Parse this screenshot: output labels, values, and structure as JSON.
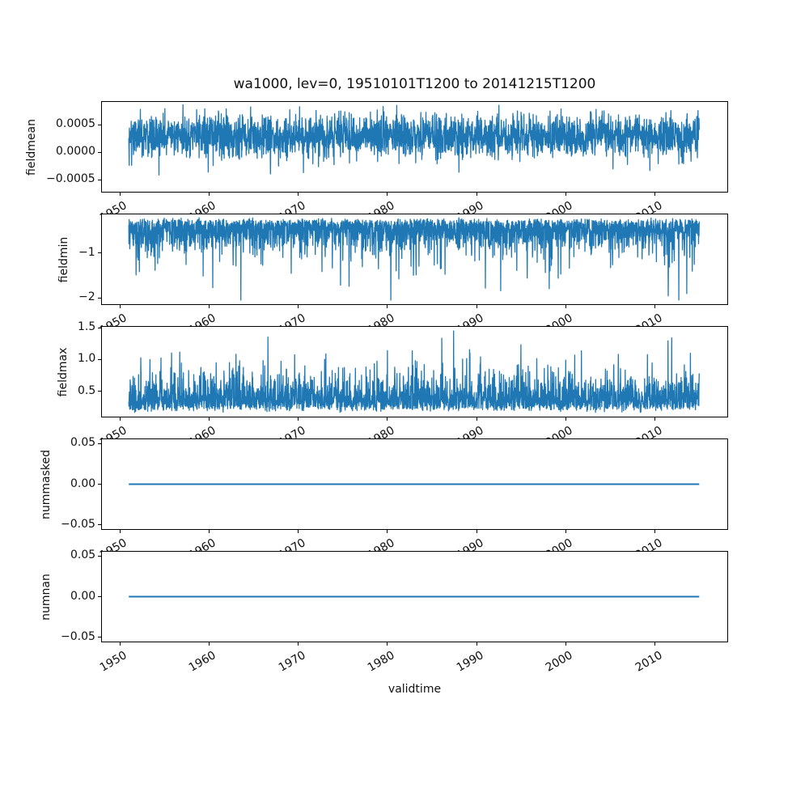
{
  "chart_data": {
    "type": "line",
    "title": "wa1000, lev=0, 19510101T1200 to 20141215T1200",
    "xlabel": "validtime",
    "line_color": "#1f77b4",
    "frame_color": "#000000",
    "background_color": "#ffffff",
    "grid": false,
    "legend": null,
    "xlim": [
      1947.9,
      2018.2
    ],
    "data_x_range": [
      1951.0,
      2014.96
    ],
    "x_tick_rotation_deg": 30,
    "x_ticks": [
      {
        "value": 1950,
        "label": "1950"
      },
      {
        "value": 1960,
        "label": "1960"
      },
      {
        "value": 1970,
        "label": "1970"
      },
      {
        "value": 1980,
        "label": "1980"
      },
      {
        "value": 1990,
        "label": "1990"
      },
      {
        "value": 2000,
        "label": "2000"
      },
      {
        "value": 2010,
        "label": "2010"
      }
    ],
    "subplots": [
      {
        "ylabel": "fieldmean",
        "ylim": [
          -0.00072,
          0.00092
        ],
        "yticks": [
          {
            "value": 0.0005,
            "label": "0.0005"
          },
          {
            "value": 0.0,
            "label": "0.0000"
          },
          {
            "value": -0.0005,
            "label": "−0.0005"
          }
        ],
        "series": {
          "kind": "noise",
          "base": 0.0003,
          "jitter": 0.00019,
          "scale": 0,
          "spike_p": 0.012,
          "spike_scale": -0.0003,
          "clip": [
            -0.00066,
            0.00087
          ],
          "n": 2800,
          "seed": 7,
          "observed_min": -0.00065,
          "observed_max": 0.00086
        }
      },
      {
        "ylabel": "fieldmin",
        "ylim": [
          -2.14,
          -0.14
        ],
        "yticks": [
          {
            "value": -1,
            "label": "−1"
          },
          {
            "value": -2,
            "label": "−2"
          }
        ],
        "series": {
          "kind": "noise",
          "base": -0.26,
          "jitter": 0.02,
          "scale": -0.3,
          "spike_p": 0.07,
          "spike_scale": -0.5,
          "clip": [
            -2.05,
            -0.205
          ],
          "n": 2800,
          "seed": 13,
          "observed_min": -2.05,
          "observed_max": -0.21
        }
      },
      {
        "ylabel": "fieldmax",
        "ylim": [
          0.1,
          1.514
        ],
        "yticks": [
          {
            "value": 1.5,
            "label": "1.5"
          },
          {
            "value": 1.0,
            "label": "1.0"
          },
          {
            "value": 0.5,
            "label": "0.5"
          }
        ],
        "series": {
          "kind": "noise",
          "base": 0.21,
          "jitter": 0.02,
          "scale": 0.22,
          "spike_p": 0.08,
          "spike_scale": 0.35,
          "clip": [
            0.168,
            1.45
          ],
          "n": 2800,
          "seed": 21,
          "observed_min": 0.17,
          "observed_max": 1.45
        }
      },
      {
        "ylabel": "nummasked",
        "ylim": [
          -0.055,
          0.055
        ],
        "yticks": [
          {
            "value": 0.05,
            "label": "0.05"
          },
          {
            "value": 0.0,
            "label": "0.00"
          },
          {
            "value": -0.05,
            "label": "−0.05"
          }
        ],
        "series": {
          "kind": "const",
          "value": 0
        }
      },
      {
        "ylabel": "numnan",
        "ylim": [
          -0.055,
          0.055
        ],
        "yticks": [
          {
            "value": 0.05,
            "label": "0.05"
          },
          {
            "value": 0.0,
            "label": "0.00"
          },
          {
            "value": -0.05,
            "label": "−0.05"
          }
        ],
        "series": {
          "kind": "const",
          "value": 0
        }
      }
    ]
  }
}
